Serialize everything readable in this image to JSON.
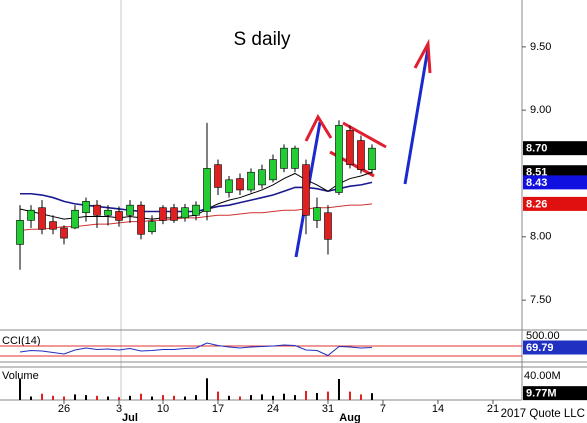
{
  "chart_data": {
    "type": "candlestick",
    "title": "S daily",
    "footer": "2017 Quote LLC",
    "x": [
      0,
      1,
      2,
      3,
      4,
      5,
      6,
      7,
      8,
      9,
      10,
      11,
      12,
      13,
      14,
      15,
      16,
      17,
      18,
      19,
      20,
      21,
      22,
      23,
      24,
      25,
      26,
      27,
      28,
      29,
      30,
      31,
      32
    ],
    "open": [
      7.94,
      8.13,
      8.23,
      8.12,
      8.07,
      8.07,
      8.19,
      8.25,
      8.17,
      8.2,
      8.17,
      8.25,
      8.04,
      8.23,
      8.23,
      8.15,
      8.17,
      8.2,
      8.57,
      8.35,
      8.46,
      8.37,
      8.41,
      8.45,
      8.54,
      8.54,
      8.57,
      8.13,
      8.19,
      8.35,
      8.84,
      8.76,
      8.53
    ],
    "high": [
      8.25,
      8.25,
      8.29,
      8.17,
      8.09,
      8.25,
      8.31,
      8.29,
      8.25,
      8.24,
      8.29,
      8.28,
      8.17,
      8.25,
      8.26,
      8.26,
      8.28,
      8.9,
      8.61,
      8.48,
      8.5,
      8.54,
      8.57,
      8.65,
      8.73,
      8.72,
      8.61,
      8.31,
      8.25,
      8.92,
      8.88,
      8.8,
      8.73
    ],
    "low": [
      7.74,
      8.07,
      8.02,
      8.02,
      7.94,
      8.06,
      8.12,
      8.07,
      8.09,
      8.08,
      8.11,
      7.98,
      8.02,
      8.1,
      8.11,
      8.12,
      8.13,
      8.13,
      8.33,
      8.31,
      8.33,
      8.35,
      8.38,
      8.43,
      8.51,
      8.51,
      8.02,
      8.07,
      7.86,
      8.33,
      8.54,
      8.5,
      8.5
    ],
    "close": [
      8.13,
      8.21,
      8.06,
      8.06,
      7.99,
      8.21,
      8.28,
      8.17,
      8.21,
      8.13,
      8.25,
      8.02,
      8.12,
      8.13,
      8.13,
      8.23,
      8.25,
      8.54,
      8.39,
      8.45,
      8.37,
      8.51,
      8.53,
      8.61,
      8.7,
      8.7,
      8.17,
      8.23,
      7.98,
      8.88,
      8.57,
      8.53,
      8.7
    ],
    "up_color": "#22cc33",
    "down_color": "#e02020",
    "overlays": [
      {
        "color": "#d03030",
        "values": [
          8.05,
          8.06,
          8.06,
          8.07,
          8.08,
          8.08,
          8.09,
          8.1,
          8.1,
          8.11,
          8.12,
          8.12,
          8.13,
          8.13,
          8.14,
          8.15,
          8.15,
          8.16,
          8.17,
          8.17,
          8.18,
          8.19,
          8.19,
          8.2,
          8.21,
          8.21,
          8.22,
          8.23,
          8.23,
          8.24,
          8.25,
          8.25,
          8.26
        ]
      },
      {
        "color": "#1a1a90",
        "values": [
          8.34,
          8.34,
          8.33,
          8.31,
          8.28,
          8.26,
          8.25,
          8.24,
          8.23,
          8.22,
          8.21,
          8.2,
          8.2,
          8.2,
          8.2,
          8.2,
          8.2,
          8.22,
          8.24,
          8.25,
          8.27,
          8.29,
          8.31,
          8.33,
          8.36,
          8.39,
          8.39,
          8.38,
          8.36,
          8.38,
          8.4,
          8.41,
          8.43
        ]
      },
      {
        "color": "#000000",
        "values": [
          8.22,
          8.2,
          8.18,
          8.16,
          8.14,
          8.15,
          8.16,
          8.16,
          8.16,
          8.15,
          8.16,
          8.15,
          8.14,
          8.15,
          8.15,
          8.16,
          8.17,
          8.22,
          8.26,
          8.29,
          8.31,
          8.34,
          8.37,
          8.41,
          8.46,
          8.5,
          8.45,
          8.41,
          8.36,
          8.42,
          8.46,
          8.48,
          8.51
        ]
      }
    ],
    "price_labels": [
      {
        "value": 8.7,
        "label": "8.70",
        "color": "#000000"
      },
      {
        "value": 8.51,
        "label": "8.51",
        "color": "#000000"
      },
      {
        "value": 8.43,
        "label": "8.43",
        "color": "#1010e0"
      },
      {
        "value": 8.26,
        "label": "8.26",
        "color": "#e01010"
      }
    ],
    "xlim": [
      -1.82,
      45.64
    ],
    "xticks": [
      {
        "value": 4,
        "label": "26"
      },
      {
        "value": 9,
        "label": "3"
      },
      {
        "value": 13,
        "label": "10"
      },
      {
        "value": 18,
        "label": "17"
      },
      {
        "value": 23,
        "label": "24"
      },
      {
        "value": 28,
        "label": "31"
      },
      {
        "value": 33,
        "label": "7"
      },
      {
        "value": 38,
        "label": "14"
      },
      {
        "value": 43,
        "label": "21"
      }
    ],
    "months": [
      {
        "value": 10,
        "label": "Jul"
      },
      {
        "value": 30,
        "label": "Aug"
      }
    ],
    "ylim": [
      7.28,
      9.87
    ],
    "yticks": [
      {
        "value": 7.5,
        "label": "7.50"
      },
      {
        "value": 8,
        "label": "8.00"
      },
      {
        "value": 9,
        "label": "9.00"
      },
      {
        "value": 9.5,
        "label": "9.50"
      }
    ],
    "cci": {
      "name": "CCI(14)",
      "color": "#2030c0",
      "level_color": "#e03030",
      "ylim": [
        -200,
        500
      ],
      "yticks": [
        {
          "value": 500,
          "label": "500.00"
        }
      ],
      "levels": [
        100,
        -100
      ],
      "values": [
        -20,
        10,
        0,
        -30,
        -60,
        20,
        60,
        30,
        40,
        20,
        50,
        0,
        10,
        30,
        30,
        50,
        60,
        160,
        110,
        80,
        60,
        80,
        90,
        100,
        120,
        110,
        20,
        10,
        -90,
        90,
        80,
        60,
        69.79
      ],
      "last_label": {
        "value": 69.79,
        "label": "69.79"
      }
    },
    "volume": {
      "name": "Volume",
      "ylim": [
        0,
        40000000
      ],
      "yticks": [
        {
          "value": 40000000,
          "label": "40.00M"
        }
      ],
      "values": [
        30000000,
        5000000,
        9000000,
        6000000,
        5000000,
        8000000,
        7000000,
        6000000,
        5000000,
        4000000,
        6000000,
        9000000,
        5000000,
        7000000,
        6000000,
        5000000,
        7000000,
        31000000,
        12000000,
        6000000,
        5000000,
        7000000,
        8000000,
        6000000,
        9000000,
        7000000,
        13000000,
        10000000,
        12000000,
        30000000,
        12000000,
        8000000,
        9770000
      ],
      "last_label": {
        "value": 9770000,
        "label": "9.77M"
      }
    }
  }
}
